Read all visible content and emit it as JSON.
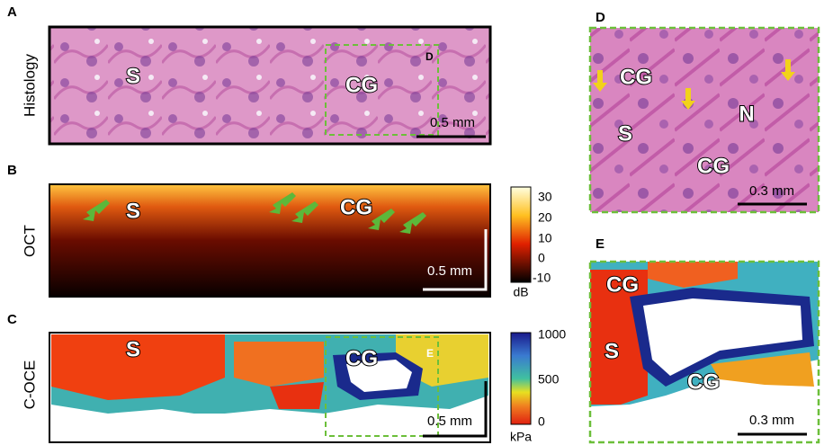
{
  "panels": [
    {
      "label": "A",
      "side_label": "Histology",
      "annotations": [
        "S",
        "CG"
      ],
      "inset_label": "D",
      "scale_bar": "0.5 mm"
    },
    {
      "label": "B",
      "side_label": "OCT",
      "annotations": [
        "S",
        "CG"
      ],
      "scale_bar": "0.5 mm",
      "colorbar": {
        "ticks": [
          30,
          20,
          10,
          0,
          -10
        ],
        "unit": "dB"
      }
    },
    {
      "label": "C",
      "side_label": "C-OCE",
      "annotations": [
        "S",
        "CG"
      ],
      "inset_label": "E",
      "scale_bar": "0.5 mm",
      "colorbar": {
        "ticks": [
          1000,
          500,
          0
        ],
        "unit": "kPa"
      }
    },
    {
      "label": "D",
      "annotations": [
        "CG",
        "S",
        "N",
        "CG"
      ],
      "scale_bar": "0.3 mm"
    },
    {
      "label": "E",
      "annotations": [
        "CG",
        "S",
        "CG"
      ],
      "scale_bar": "0.3 mm"
    }
  ]
}
